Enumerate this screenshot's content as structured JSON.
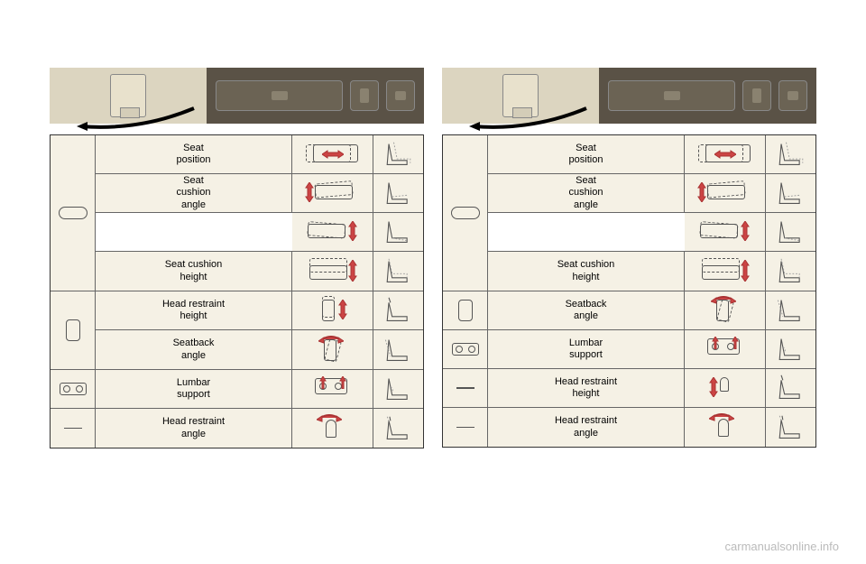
{
  "watermark": "carmanualsonline.info",
  "colors": {
    "row_bg": "#f5f1e5",
    "border": "#333",
    "border_inner": "#666",
    "arrow_red": "#c44",
    "photo_beige": "#d4cdb8",
    "photo_dark": "#5a5246"
  },
  "leftPanel": {
    "rows": [
      {
        "label": "Seat\nposition",
        "switch": "horiz-slider",
        "group": 1
      },
      {
        "label": "Seat\ncushion\nangle",
        "switch": null,
        "group": 1,
        "double": true
      },
      {
        "label": "Seat cushion\nheight",
        "switch": null,
        "group": 1
      },
      {
        "label": "Head restraint\nheight",
        "switch": "vertical",
        "group": 2
      },
      {
        "label": "Seatback\nangle",
        "switch": null,
        "group": 2
      },
      {
        "label": "Lumbar\nsupport",
        "switch": "lumbar",
        "group": 3
      },
      {
        "label": "Head restraint\nangle",
        "switch": "dash",
        "group": 4
      }
    ]
  },
  "rightPanel": {
    "rows": [
      {
        "label": "Seat\nposition",
        "switch": "horiz-slider",
        "group": 1
      },
      {
        "label": "Seat\ncushion\nangle",
        "switch": null,
        "group": 1,
        "double": true
      },
      {
        "label": "Seat cushion\nheight",
        "switch": null,
        "group": 1
      },
      {
        "label": "Seatback\nangle",
        "switch": "vertical",
        "group": 2
      },
      {
        "label": "Lumbar\nsupport",
        "switch": "lumbar",
        "group": 3
      },
      {
        "label": "Head restraint\nheight",
        "switch": "dash",
        "group": 4
      },
      {
        "label": "Head restraint\nangle",
        "switch": "dash",
        "group": 5
      }
    ]
  }
}
